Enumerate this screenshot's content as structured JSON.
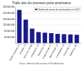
{
  "chart_data": {
    "type": "bar",
    "title": "Trafic des dix premiers ports américains",
    "source": "Source : American Association of Port Authorities",
    "categories": [
      "South Louisiana, LA",
      "Houston, TX",
      "New York, NY/NJ",
      "Long Beach, CA",
      "Beaumont, TX",
      "Corpus Christi, TX",
      "New Orleans, LA",
      "Los Angeles, CA",
      "Texas City, TX",
      "Baltimore, MD"
    ],
    "series": [
      {
        "name": "Nombre de tonnes de marchandises en 2007",
        "color": "#1a1a8c",
        "values": [
          220000000,
          155000000,
          95000000,
          72000000,
          68000000,
          65000000,
          60000000,
          58000000,
          56000000,
          54000000
        ]
      }
    ],
    "ylim": [
      0,
      240000000
    ],
    "yticks": [
      {
        "value": 40000000,
        "label": "40 000 000"
      },
      {
        "value": 80000000,
        "label": "80 000 000"
      },
      {
        "value": 120000000,
        "label": "120 000 000"
      },
      {
        "value": 160000000,
        "label": "160 000 000"
      },
      {
        "value": 200000000,
        "label": "200 000 000"
      },
      {
        "value": 240000000,
        "label": "240 000 000"
      }
    ],
    "grid": true,
    "legend": "upper right"
  }
}
